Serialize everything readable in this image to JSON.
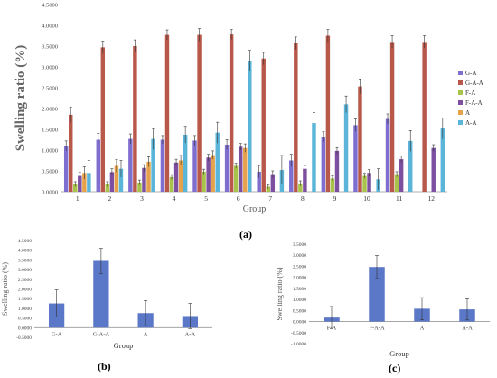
{
  "chart_data": [
    {
      "type": "bar",
      "panel": "(a)",
      "categories": [
        "1",
        "2",
        "3",
        "4",
        "5",
        "6",
        "7",
        "8",
        "9",
        "10",
        "11",
        "12"
      ],
      "xlabel": "Group",
      "ylabel": "Swelling ratio (%)",
      "ylim": [
        0,
        4.5
      ],
      "yticks": [
        "0.0000",
        "0.5000",
        "1.0000",
        "1.5000",
        "2.0000",
        "2.5000",
        "3.0000",
        "3.5000",
        "4.0000",
        "4.5000"
      ],
      "legend_position": "right",
      "series": [
        {
          "name": "G-A",
          "color": "#7e6ed0",
          "values": [
            1.1,
            1.25,
            1.27,
            1.25,
            1.23,
            1.13,
            0.48,
            0.75,
            1.32,
            1.6,
            1.75,
            null
          ],
          "errors": [
            0.12,
            0.15,
            0.12,
            0.1,
            0.12,
            0.12,
            0.15,
            0.15,
            0.12,
            0.15,
            0.12,
            null
          ]
        },
        {
          "name": "G-A-A",
          "color": "#b8584a",
          "values": [
            1.85,
            3.47,
            3.5,
            3.77,
            3.77,
            3.78,
            3.2,
            3.57,
            3.75,
            2.53,
            3.6,
            3.6
          ],
          "errors": [
            0.18,
            0.15,
            0.15,
            0.12,
            0.15,
            0.12,
            0.15,
            0.15,
            0.15,
            0.18,
            0.15,
            0.15
          ]
        },
        {
          "name": "F-A",
          "color": "#a8c34a",
          "values": [
            0.18,
            0.18,
            0.22,
            0.35,
            0.48,
            0.62,
            0.12,
            0.2,
            0.32,
            0.38,
            0.42,
            null
          ],
          "errors": [
            0.06,
            0.06,
            0.06,
            0.06,
            0.06,
            0.06,
            0.05,
            0.06,
            0.06,
            0.06,
            0.06,
            null
          ]
        },
        {
          "name": "F-A-A",
          "color": "#7d4fa0",
          "values": [
            0.38,
            0.47,
            0.57,
            0.7,
            0.82,
            1.08,
            0.42,
            0.55,
            0.98,
            0.45,
            0.78,
            1.05
          ],
          "errors": [
            0.08,
            0.08,
            0.08,
            0.08,
            0.08,
            0.08,
            0.08,
            0.08,
            0.08,
            0.08,
            0.08,
            0.08
          ]
        },
        {
          "name": "A",
          "color": "#e6a24a",
          "values": [
            0.45,
            0.62,
            0.72,
            0.75,
            0.88,
            1.05,
            null,
            null,
            null,
            null,
            null,
            null
          ],
          "errors": [
            0.15,
            0.15,
            0.12,
            0.12,
            0.1,
            0.1,
            null,
            null,
            null,
            null,
            null,
            null
          ]
        },
        {
          "name": "A-A",
          "color": "#5bb5d9",
          "values": [
            0.45,
            0.55,
            1.27,
            1.37,
            1.42,
            3.15,
            0.52,
            1.65,
            2.1,
            0.3,
            1.22,
            1.52
          ],
          "errors": [
            0.3,
            0.2,
            0.25,
            0.2,
            0.25,
            0.25,
            0.35,
            0.25,
            0.2,
            0.25,
            0.25,
            0.25
          ]
        }
      ]
    },
    {
      "type": "bar",
      "panel": "(b)",
      "categories": [
        "G-A",
        "G-A-A",
        "A",
        "A-A"
      ],
      "values": [
        1.25,
        3.45,
        0.75,
        0.6
      ],
      "errors": [
        0.7,
        0.65,
        0.65,
        0.65
      ],
      "color": "#5b78c8",
      "xlabel": "Group",
      "ylabel": "Swelling ratio (%)",
      "ylim": [
        -0.5,
        4.5
      ],
      "yticks": [
        "-0.5000",
        "0.0000",
        "0.5000",
        "1.0000",
        "1.5000",
        "2.0000",
        "2.5000",
        "3.0000",
        "3.5000",
        "4.0000",
        "4.5000"
      ]
    },
    {
      "type": "bar",
      "panel": "(c)",
      "categories": [
        "F-A",
        "F-A-A",
        "A",
        "A-A"
      ],
      "values": [
        0.18,
        2.47,
        0.58,
        0.55
      ],
      "errors": [
        0.5,
        0.52,
        0.5,
        0.48
      ],
      "color": "#5b78c8",
      "xlabel": "Group",
      "ylabel": "Swelling ratio (%)",
      "ylim": [
        -1.0,
        3.5
      ],
      "yticks": [
        "-1.0000",
        "-0.5000",
        "0.0000",
        "0.5000",
        "1.0000",
        "1.5000",
        "2.0000",
        "2.5000",
        "3.0000",
        "3.5000"
      ]
    }
  ]
}
